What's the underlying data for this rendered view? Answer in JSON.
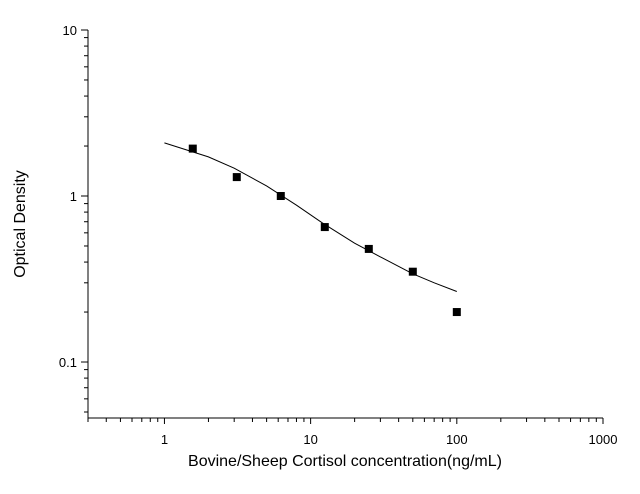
{
  "chart_data": {
    "type": "scatter",
    "title": "",
    "xlabel": "Bovine/Sheep Cortisol concentration(ng/mL)",
    "ylabel": "Optical Density",
    "xscale": "log",
    "yscale": "log",
    "xlim": [
      0.3,
      1000
    ],
    "ylim": [
      0.046,
      10
    ],
    "x_ticks": [
      1,
      10,
      100,
      1000
    ],
    "x_tick_labels": [
      "1",
      "10",
      "100",
      "1000"
    ],
    "y_ticks": [
      0.1,
      1,
      10
    ],
    "y_tick_labels": [
      "0.1",
      "1",
      "10"
    ],
    "grid": false,
    "marker_color": "#000000",
    "points": {
      "x": [
        1.5625,
        3.125,
        6.25,
        12.5,
        25,
        50,
        100
      ],
      "y": [
        1.93,
        1.3,
        1.0,
        0.65,
        0.48,
        0.35,
        0.2
      ]
    },
    "fit_curve": {
      "x": [
        1,
        2,
        3,
        5,
        8,
        12,
        20,
        30,
        50,
        70,
        100
      ],
      "y": [
        2.09,
        1.72,
        1.47,
        1.15,
        0.88,
        0.69,
        0.52,
        0.43,
        0.34,
        0.3,
        0.266
      ]
    }
  }
}
